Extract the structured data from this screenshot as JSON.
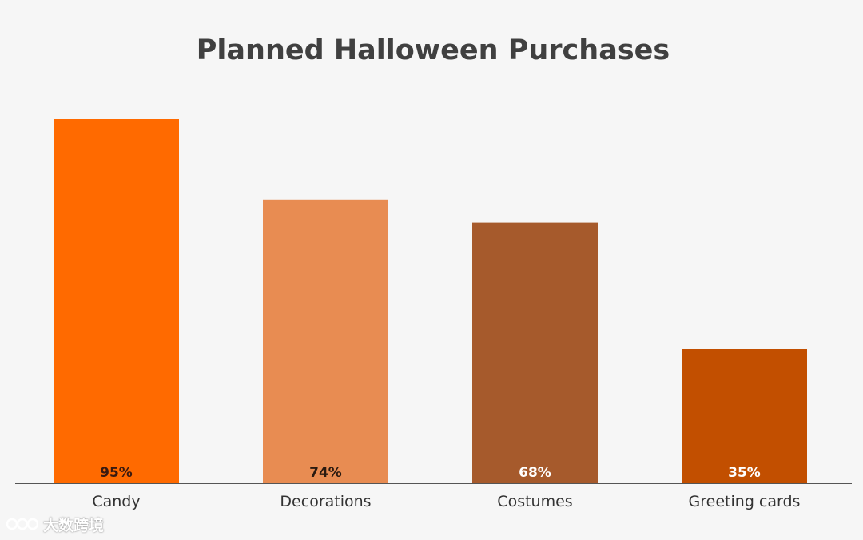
{
  "chart_data": {
    "type": "bar",
    "title": "Planned Halloween Purchases",
    "xlabel": "",
    "ylabel": "",
    "categories": [
      "Candy",
      "Decorations",
      "Costumes",
      "Greeting cards"
    ],
    "values": [
      95,
      74,
      68,
      35
    ],
    "value_labels": [
      "95%",
      "74%",
      "68%",
      "35%"
    ],
    "ylim": [
      0,
      100
    ],
    "grid": false,
    "legend": "none",
    "bar_colors": [
      "#ff6a00",
      "#e88c52",
      "#a65a2c",
      "#c24f00"
    ],
    "label_colors": [
      "#3a1a10",
      "#2a1a10",
      "#ffffff",
      "#ffffff"
    ],
    "axis_color": "#555555"
  },
  "watermark": {
    "text": "大数跨境"
  }
}
